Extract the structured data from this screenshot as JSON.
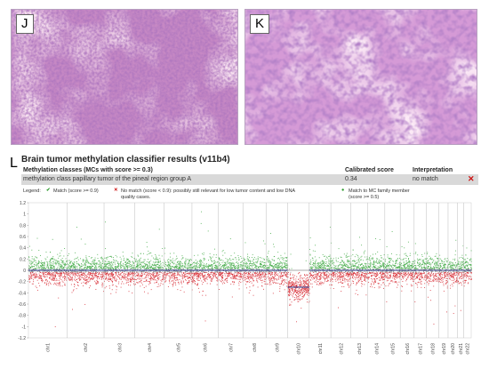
{
  "panels": {
    "j": {
      "letter": "J"
    },
    "k": {
      "letter": "K"
    }
  },
  "classifier": {
    "panel_letter": "L",
    "title": "Brain tumor methylation classifier results (v11b4)",
    "columns": {
      "classes": "Methylation classes (MCs with score >= 0.3)",
      "score": "Calibrated score",
      "interpretation": "Interpretation"
    },
    "row": {
      "class_name": "methylation class papillary tumor of the pineal region group A",
      "score": "0.34",
      "interpretation": "no match"
    },
    "legend": {
      "label": "Legend:",
      "match": "Match (score >= 0.9)",
      "no_match_line1": "No match (score < 0.9): possibly still relevant for low tumor content and low DNA",
      "no_match_line2": "quality cases.",
      "family_line1": "Match to MC family member",
      "family_line2": "(score >= 0.5)"
    },
    "colors": {
      "gain": "#4caf50",
      "loss": "#d9363e",
      "match": "#2a9a2a",
      "no_match": "#cc1111"
    }
  },
  "chart_data": {
    "type": "scatter",
    "title": "",
    "xlabel": "",
    "ylabel": "",
    "ylim": [
      -1.2,
      1.2
    ],
    "y_ticks": [
      "1.2",
      "1",
      "0.8",
      "0.6",
      "0.4",
      "0.2",
      "0",
      "-0.2",
      "-0.4",
      "-0.6",
      "-0.8",
      "-1",
      "-1.2"
    ],
    "chromosomes": [
      "chr1",
      "chr2",
      "chr3",
      "chr4",
      "chr5",
      "chr6",
      "chr7",
      "chr8",
      "chr9",
      "chr10",
      "chr11",
      "chr12",
      "chr13",
      "chr14",
      "chr15",
      "chr16",
      "chr17",
      "chr18",
      "chr19",
      "chr20",
      "chr21",
      "chr22"
    ],
    "chromosome_weights": [
      25,
      24,
      20,
      19,
      18,
      17,
      16,
      15,
      14,
      14,
      14,
      13,
      11,
      11,
      10,
      9,
      8,
      8,
      6,
      6,
      4,
      5
    ],
    "segments": [
      {
        "chromosome": "chr10",
        "from": 0.0,
        "to": 1.0,
        "value": -0.3
      }
    ],
    "baseline": 0,
    "colors": {
      "gain": "#4caf50",
      "loss": "#d9363e",
      "neutral": "#8f8f8f",
      "segment": "#2b3a8c"
    }
  }
}
